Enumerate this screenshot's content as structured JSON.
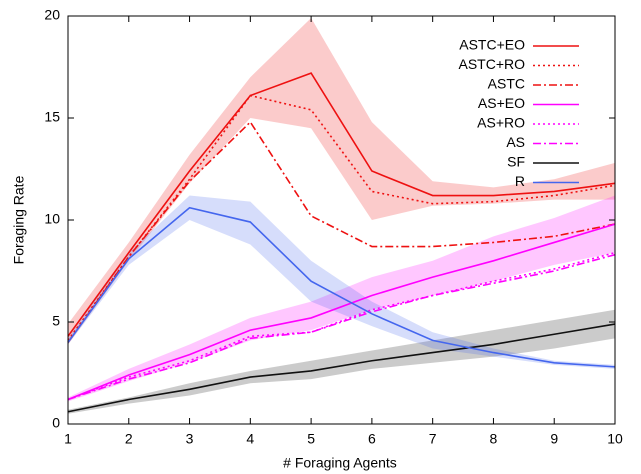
{
  "chart_data": {
    "type": "line",
    "x_label": "# Foraging Agents",
    "y_label": "Foraging Rate",
    "x": [
      1,
      2,
      3,
      4,
      5,
      6,
      7,
      8,
      9,
      10
    ],
    "xlim": [
      1,
      10
    ],
    "ylim": [
      0,
      20
    ],
    "xticks": [
      1,
      2,
      3,
      4,
      5,
      6,
      7,
      8,
      9,
      10
    ],
    "yticks": [
      0,
      5,
      10,
      15,
      20
    ],
    "legend": "top-right",
    "series": [
      {
        "name": "ASTC+EO",
        "color": "#ee1111",
        "dash": "solid",
        "values": [
          4.3,
          8.4,
          12.4,
          16.1,
          17.2,
          12.4,
          11.2,
          11.2,
          11.4,
          11.8
        ],
        "lower": [
          3.9,
          8.0,
          11.8,
          15.0,
          14.5,
          10.0,
          10.7,
          10.8,
          11.0,
          11.0
        ],
        "upper": [
          4.9,
          8.9,
          13.2,
          17.0,
          19.9,
          14.8,
          11.9,
          11.6,
          12.0,
          12.8
        ]
      },
      {
        "name": "ASTC+RO",
        "color": "#ee1111",
        "dash": "dotted",
        "values": [
          4.1,
          8.2,
          12.0,
          16.1,
          15.4,
          11.4,
          10.8,
          10.9,
          11.2,
          11.7
        ]
      },
      {
        "name": "ASTC",
        "color": "#ee1111",
        "dash": "dashdot",
        "values": [
          4.0,
          8.2,
          11.9,
          14.8,
          10.2,
          8.7,
          8.7,
          8.9,
          9.2,
          9.8
        ]
      },
      {
        "name": "AS+EO",
        "color": "#ff00ff",
        "dash": "solid",
        "values": [
          1.2,
          2.4,
          3.4,
          4.6,
          5.2,
          6.3,
          7.2,
          8.0,
          8.9,
          9.8
        ],
        "lower": [
          1.1,
          2.1,
          3.0,
          4.1,
          4.6,
          5.6,
          6.3,
          7.0,
          7.8,
          8.4
        ],
        "upper": [
          1.3,
          2.7,
          3.9,
          5.2,
          6.0,
          7.2,
          8.0,
          9.2,
          10.1,
          11.2
        ]
      },
      {
        "name": "AS+RO",
        "color": "#ff00ff",
        "dash": "dotted",
        "values": [
          1.2,
          2.3,
          3.1,
          4.3,
          4.5,
          5.6,
          6.3,
          7.0,
          7.6,
          8.4
        ]
      },
      {
        "name": "AS",
        "color": "#ff00ff",
        "dash": "dashdot",
        "values": [
          1.2,
          2.2,
          3.0,
          4.2,
          4.5,
          5.5,
          6.3,
          6.9,
          7.5,
          8.3
        ]
      },
      {
        "name": "SF",
        "color": "#111111",
        "dash": "solid",
        "values": [
          0.6,
          1.2,
          1.7,
          2.3,
          2.6,
          3.1,
          3.5,
          3.9,
          4.4,
          4.9
        ],
        "lower": [
          0.5,
          1.0,
          1.4,
          2.0,
          2.2,
          2.7,
          3.0,
          3.3,
          3.7,
          4.2
        ],
        "upper": [
          0.7,
          1.3,
          2.0,
          2.6,
          3.1,
          3.6,
          4.1,
          4.6,
          5.1,
          5.6
        ]
      },
      {
        "name": "R",
        "color": "#4466ee",
        "dash": "solid",
        "values": [
          4.0,
          8.1,
          10.6,
          9.9,
          7.0,
          5.4,
          4.1,
          3.5,
          3.0,
          2.8
        ],
        "lower": [
          3.9,
          7.8,
          10.0,
          8.8,
          6.0,
          4.8,
          3.7,
          3.3,
          2.9,
          2.7
        ],
        "upper": [
          4.2,
          8.4,
          11.2,
          10.9,
          8.0,
          6.0,
          4.5,
          3.7,
          3.1,
          2.9
        ]
      }
    ]
  }
}
